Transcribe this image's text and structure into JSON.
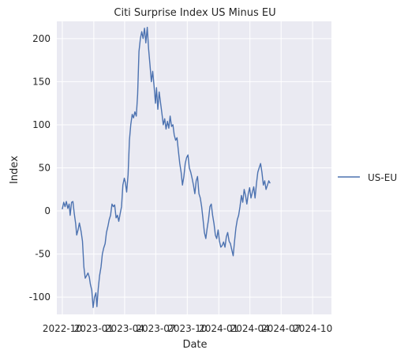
{
  "chart_data": {
    "type": "line",
    "title": "Citi Surprise Index US Minus EU",
    "xlabel": "Date",
    "ylabel": "Index",
    "ylim": [
      -120,
      220
    ],
    "xlim": [
      "2022-09-15",
      "2024-11-25"
    ],
    "grid": true,
    "legend_placement": "outside-right",
    "x_ticks": [
      {
        "date": "2022-10-01",
        "label": "2022-10"
      },
      {
        "date": "2023-01-01",
        "label": "2023-01"
      },
      {
        "date": "2023-04-01",
        "label": "2023-04"
      },
      {
        "date": "2023-07-01",
        "label": "2023-07"
      },
      {
        "date": "2023-10-01",
        "label": "2023-10"
      },
      {
        "date": "2024-01-01",
        "label": "2024-01"
      },
      {
        "date": "2024-04-01",
        "label": "2024-04"
      },
      {
        "date": "2024-07-01",
        "label": "2024-07"
      },
      {
        "date": "2024-10-01",
        "label": "2024-10"
      }
    ],
    "y_ticks": [
      -100,
      -50,
      0,
      50,
      100,
      150,
      200
    ],
    "series": [
      {
        "name": "US-EU",
        "color": "#4c72b0",
        "points": [
          [
            "2022-10-01",
            2
          ],
          [
            "2022-10-05",
            10
          ],
          [
            "2022-10-09",
            5
          ],
          [
            "2022-10-13",
            11
          ],
          [
            "2022-10-17",
            3
          ],
          [
            "2022-10-21",
            8
          ],
          [
            "2022-10-24",
            -5
          ],
          [
            "2022-10-28",
            10
          ],
          [
            "2022-11-01",
            11
          ],
          [
            "2022-11-05",
            -3
          ],
          [
            "2022-11-09",
            -15
          ],
          [
            "2022-11-12",
            -28
          ],
          [
            "2022-11-16",
            -22
          ],
          [
            "2022-11-20",
            -14
          ],
          [
            "2022-11-25",
            -24
          ],
          [
            "2022-11-29",
            -35
          ],
          [
            "2022-12-03",
            -65
          ],
          [
            "2022-12-07",
            -78
          ],
          [
            "2022-12-11",
            -75
          ],
          [
            "2022-12-15",
            -72
          ],
          [
            "2022-12-19",
            -77
          ],
          [
            "2022-12-22",
            -85
          ],
          [
            "2022-12-26",
            -92
          ],
          [
            "2022-12-30",
            -112
          ],
          [
            "2023-01-03",
            -100
          ],
          [
            "2023-01-07",
            -95
          ],
          [
            "2023-01-10",
            -111
          ],
          [
            "2023-01-14",
            -90
          ],
          [
            "2023-01-18",
            -75
          ],
          [
            "2023-01-22",
            -65
          ],
          [
            "2023-01-26",
            -50
          ],
          [
            "2023-01-30",
            -43
          ],
          [
            "2023-02-03",
            -38
          ],
          [
            "2023-02-07",
            -25
          ],
          [
            "2023-02-11",
            -18
          ],
          [
            "2023-02-15",
            -10
          ],
          [
            "2023-02-19",
            -5
          ],
          [
            "2023-02-23",
            8
          ],
          [
            "2023-02-27",
            5
          ],
          [
            "2023-03-03",
            7
          ],
          [
            "2023-03-07",
            -8
          ],
          [
            "2023-03-11",
            -5
          ],
          [
            "2023-03-15",
            -12
          ],
          [
            "2023-03-19",
            -3
          ],
          [
            "2023-03-23",
            5
          ],
          [
            "2023-03-27",
            30
          ],
          [
            "2023-03-31",
            38
          ],
          [
            "2023-04-03",
            33
          ],
          [
            "2023-04-07",
            22
          ],
          [
            "2023-04-11",
            42
          ],
          [
            "2023-04-15",
            82
          ],
          [
            "2023-04-19",
            100
          ],
          [
            "2023-04-23",
            112
          ],
          [
            "2023-04-27",
            108
          ],
          [
            "2023-05-01",
            115
          ],
          [
            "2023-05-05",
            110
          ],
          [
            "2023-05-09",
            135
          ],
          [
            "2023-05-13",
            185
          ],
          [
            "2023-05-17",
            200
          ],
          [
            "2023-05-21",
            208
          ],
          [
            "2023-05-25",
            200
          ],
          [
            "2023-05-29",
            212
          ],
          [
            "2023-06-02",
            195
          ],
          [
            "2023-06-06",
            213
          ],
          [
            "2023-06-10",
            188
          ],
          [
            "2023-06-14",
            170
          ],
          [
            "2023-06-18",
            150
          ],
          [
            "2023-06-22",
            162
          ],
          [
            "2023-06-26",
            145
          ],
          [
            "2023-06-30",
            125
          ],
          [
            "2023-07-03",
            143
          ],
          [
            "2023-07-07",
            118
          ],
          [
            "2023-07-11",
            138
          ],
          [
            "2023-07-15",
            125
          ],
          [
            "2023-07-19",
            113
          ],
          [
            "2023-07-23",
            100
          ],
          [
            "2023-07-27",
            107
          ],
          [
            "2023-07-31",
            95
          ],
          [
            "2023-08-04",
            104
          ],
          [
            "2023-08-08",
            96
          ],
          [
            "2023-08-12",
            110
          ],
          [
            "2023-08-16",
            98
          ],
          [
            "2023-08-20",
            100
          ],
          [
            "2023-08-24",
            88
          ],
          [
            "2023-08-28",
            82
          ],
          [
            "2023-09-01",
            85
          ],
          [
            "2023-09-05",
            70
          ],
          [
            "2023-09-09",
            55
          ],
          [
            "2023-09-13",
            45
          ],
          [
            "2023-09-17",
            30
          ],
          [
            "2023-09-21",
            40
          ],
          [
            "2023-09-25",
            55
          ],
          [
            "2023-09-29",
            62
          ],
          [
            "2023-10-03",
            65
          ],
          [
            "2023-10-07",
            50
          ],
          [
            "2023-10-11",
            45
          ],
          [
            "2023-10-15",
            38
          ],
          [
            "2023-10-19",
            30
          ],
          [
            "2023-10-23",
            20
          ],
          [
            "2023-10-27",
            35
          ],
          [
            "2023-10-31",
            40
          ],
          [
            "2023-11-04",
            20
          ],
          [
            "2023-11-08",
            15
          ],
          [
            "2023-11-12",
            5
          ],
          [
            "2023-11-16",
            -10
          ],
          [
            "2023-11-20",
            -25
          ],
          [
            "2023-11-24",
            -32
          ],
          [
            "2023-11-28",
            -20
          ],
          [
            "2023-12-02",
            -10
          ],
          [
            "2023-12-06",
            5
          ],
          [
            "2023-12-10",
            8
          ],
          [
            "2023-12-14",
            -5
          ],
          [
            "2023-12-18",
            -15
          ],
          [
            "2023-12-22",
            -28
          ],
          [
            "2023-12-26",
            -32
          ],
          [
            "2023-12-30",
            -22
          ],
          [
            "2024-01-03",
            -35
          ],
          [
            "2024-01-07",
            -42
          ],
          [
            "2024-01-11",
            -40
          ],
          [
            "2024-01-15",
            -36
          ],
          [
            "2024-01-19",
            -42
          ],
          [
            "2024-01-23",
            -30
          ],
          [
            "2024-01-27",
            -25
          ],
          [
            "2024-01-31",
            -35
          ],
          [
            "2024-02-04",
            -38
          ],
          [
            "2024-02-08",
            -45
          ],
          [
            "2024-02-12",
            -52
          ],
          [
            "2024-02-16",
            -35
          ],
          [
            "2024-02-20",
            -20
          ],
          [
            "2024-02-24",
            -10
          ],
          [
            "2024-02-28",
            -5
          ],
          [
            "2024-03-03",
            5
          ],
          [
            "2024-03-07",
            18
          ],
          [
            "2024-03-11",
            10
          ],
          [
            "2024-03-15",
            25
          ],
          [
            "2024-03-19",
            18
          ],
          [
            "2024-03-23",
            8
          ],
          [
            "2024-03-27",
            20
          ],
          [
            "2024-03-31",
            27
          ],
          [
            "2024-04-04",
            15
          ],
          [
            "2024-04-08",
            22
          ],
          [
            "2024-04-12",
            28
          ],
          [
            "2024-04-16",
            15
          ],
          [
            "2024-04-20",
            32
          ],
          [
            "2024-04-24",
            45
          ],
          [
            "2024-04-28",
            50
          ],
          [
            "2024-05-02",
            55
          ],
          [
            "2024-05-06",
            45
          ],
          [
            "2024-05-10",
            30
          ],
          [
            "2024-05-14",
            35
          ],
          [
            "2024-05-18",
            25
          ],
          [
            "2024-05-22",
            30
          ],
          [
            "2024-05-26",
            35
          ],
          [
            "2024-05-30",
            32
          ]
        ]
      }
    ]
  }
}
